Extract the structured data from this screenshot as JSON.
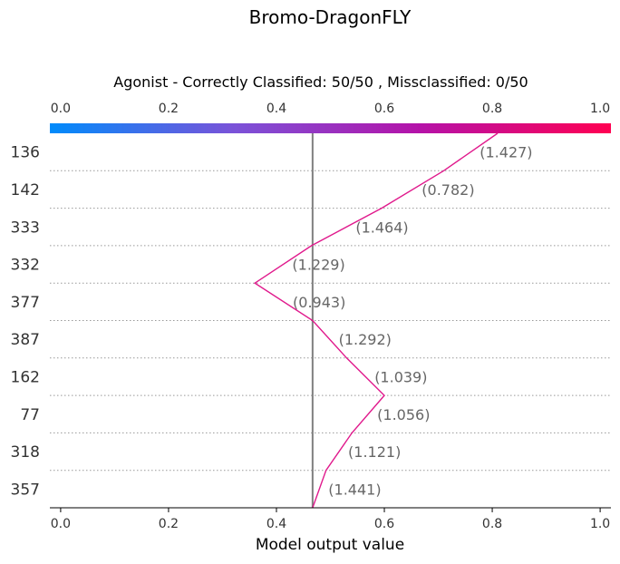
{
  "chart_data": {
    "type": "line",
    "title": "Bromo-DragonFLY",
    "subtitle": "Agonist - Correctly Classified: 50/50 , Missclassified: 0/50",
    "xlabel": "Model output value",
    "xlim": [
      -0.02,
      1.02
    ],
    "x_ticks": [
      "0.0",
      "0.2",
      "0.4",
      "0.6",
      "0.8",
      "1.0"
    ],
    "x_tick_values": [
      0.0,
      0.2,
      0.4,
      0.6,
      0.8,
      1.0
    ],
    "colorbar_gradient": [
      "#008bfb",
      "#7b52d8",
      "#b512a8",
      "#ff0052"
    ],
    "base_value": 0.467,
    "features": [
      "136",
      "142",
      "333",
      "332",
      "377",
      "387",
      "162",
      "77",
      "318",
      "357"
    ],
    "feature_values": [
      "(1.427)",
      "(0.782)",
      "(1.464)",
      "(1.229)",
      "(0.943)",
      "(1.292)",
      "(1.039)",
      "(1.056)",
      "(1.121)",
      "(1.441)"
    ],
    "path_x": [
      0.467,
      0.492,
      0.54,
      0.6,
      0.53,
      0.467,
      0.36,
      0.465,
      0.595,
      0.71,
      0.81
    ],
    "line_color": "#e0198c",
    "baseline_color": "#808080",
    "grid": "dotted"
  }
}
